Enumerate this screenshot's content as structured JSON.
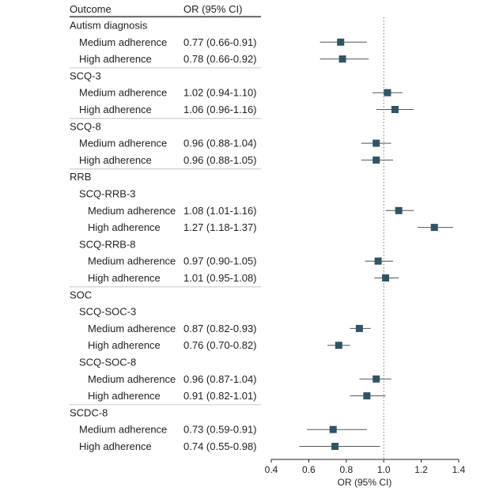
{
  "chart_data": {
    "type": "forest",
    "header": {
      "outcome": "Outcome",
      "or": "OR (95% CI)"
    },
    "xlabel": "OR (95% CI)",
    "xlim": [
      0.4,
      1.4
    ],
    "xticks": [
      "0.4",
      "0.6",
      "0.8",
      "1.0",
      "1.2",
      "1.4"
    ],
    "reference_line": 1.0,
    "marker_color": "#2e5566",
    "rows": [
      {
        "label": "Autism diagnosis",
        "level": 0
      },
      {
        "label": "Medium adherence",
        "level": 1,
        "ci_text": "0.77 (0.66-0.91)",
        "or": 0.77,
        "lo": 0.66,
        "hi": 0.91
      },
      {
        "label": "High adherence",
        "level": 1,
        "ci_text": "0.78 (0.66-0.92)",
        "or": 0.78,
        "lo": 0.66,
        "hi": 0.92
      },
      {
        "label": "SCQ-3",
        "level": 0
      },
      {
        "label": "Medium adherence",
        "level": 1,
        "ci_text": "1.02 (0.94-1.10)",
        "or": 1.02,
        "lo": 0.94,
        "hi": 1.1
      },
      {
        "label": "High adherence",
        "level": 1,
        "ci_text": "1.06 (0.96-1.16)",
        "or": 1.06,
        "lo": 0.96,
        "hi": 1.16
      },
      {
        "label": "SCQ-8",
        "level": 0
      },
      {
        "label": "Medium adherence",
        "level": 1,
        "ci_text": "0.96 (0.88-1.04)",
        "or": 0.96,
        "lo": 0.88,
        "hi": 1.04
      },
      {
        "label": "High adherence",
        "level": 1,
        "ci_text": "0.96 (0.88-1.05)",
        "or": 0.96,
        "lo": 0.88,
        "hi": 1.05
      },
      {
        "label": "RRB",
        "level": 0
      },
      {
        "label": "SCQ-RRB-3",
        "level": 1
      },
      {
        "label": "Medium adherence",
        "level": 2,
        "ci_text": "1.08 (1.01-1.16)",
        "or": 1.08,
        "lo": 1.01,
        "hi": 1.16
      },
      {
        "label": "High adherence",
        "level": 2,
        "ci_text": "1.27 (1.18-1.37)",
        "or": 1.27,
        "lo": 1.18,
        "hi": 1.37
      },
      {
        "label": "SCQ-RRB-8",
        "level": 1
      },
      {
        "label": "Medium adherence",
        "level": 2,
        "ci_text": "0.97 (0.90-1.05)",
        "or": 0.97,
        "lo": 0.9,
        "hi": 1.05
      },
      {
        "label": "High adherence",
        "level": 2,
        "ci_text": "1.01 (0.95-1.08)",
        "or": 1.01,
        "lo": 0.95,
        "hi": 1.08
      },
      {
        "label": "SOC",
        "level": 0
      },
      {
        "label": "SCQ-SOC-3",
        "level": 1
      },
      {
        "label": "Medium adherence",
        "level": 2,
        "ci_text": "0.87 (0.82-0.93)",
        "or": 0.87,
        "lo": 0.82,
        "hi": 0.93
      },
      {
        "label": "High adherence",
        "level": 2,
        "ci_text": "0.76 (0.70-0.82)",
        "or": 0.76,
        "lo": 0.7,
        "hi": 0.82
      },
      {
        "label": "SCQ-SOC-8",
        "level": 1
      },
      {
        "label": "Medium adherence",
        "level": 2,
        "ci_text": "0.96 (0.87-1.04)",
        "or": 0.96,
        "lo": 0.87,
        "hi": 1.04
      },
      {
        "label": "High adherence",
        "level": 2,
        "ci_text": "0.91 (0.82-1.01)",
        "or": 0.91,
        "lo": 0.82,
        "hi": 1.01
      },
      {
        "label": "SCDC-8",
        "level": 0
      },
      {
        "label": "Medium adherence",
        "level": 1,
        "ci_text": "0.73 (0.59-0.91)",
        "or": 0.73,
        "lo": 0.59,
        "hi": 0.91
      },
      {
        "label": "High adherence",
        "level": 1,
        "ci_text": "0.74 (0.55-0.98)",
        "or": 0.74,
        "lo": 0.55,
        "hi": 0.98
      }
    ]
  }
}
